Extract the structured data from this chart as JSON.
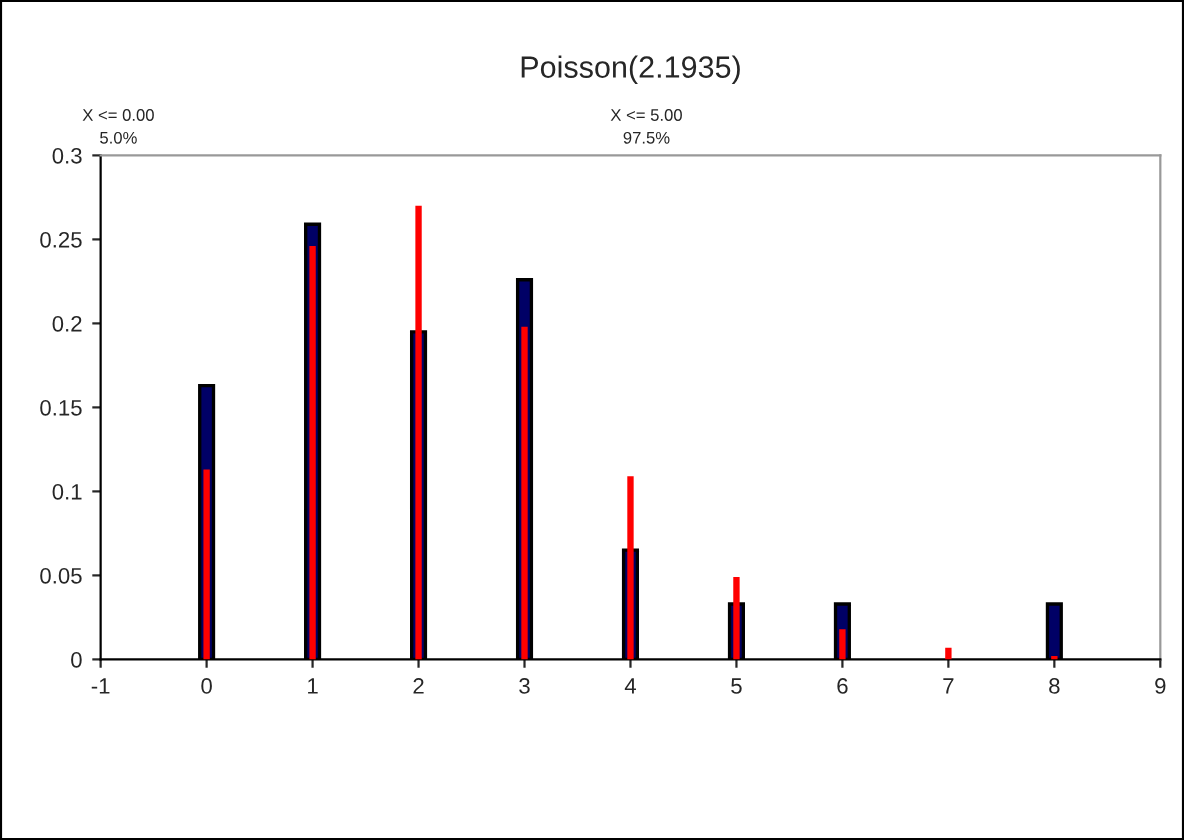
{
  "chart_data": {
    "type": "bar",
    "title": "Poisson(2.1935)",
    "x": [
      0,
      1,
      2,
      3,
      4,
      5,
      6,
      7,
      8
    ],
    "series": [
      {
        "color": "#000066",
        "values": [
          0.163,
          0.259,
          0.195,
          0.226,
          0.065,
          0.033,
          0.033,
          null,
          0.033
        ]
      },
      {
        "color": "#ff0000",
        "values": [
          0.113,
          0.246,
          0.27,
          0.198,
          0.109,
          0.049,
          0.018,
          0.007,
          0.002
        ]
      }
    ],
    "xlim": [
      -1,
      9
    ],
    "xticks": [
      -1,
      0,
      1,
      2,
      3,
      4,
      5,
      6,
      7,
      8,
      9
    ],
    "ylim": [
      0,
      0.3
    ],
    "yticks": [
      0,
      0.05,
      0.1,
      0.15,
      0.2,
      0.25,
      0.3
    ],
    "grid": false,
    "legend": false,
    "annotations": [
      "X <= 0.00\n5.0%",
      "X <= 5.00\n97.5%"
    ]
  }
}
